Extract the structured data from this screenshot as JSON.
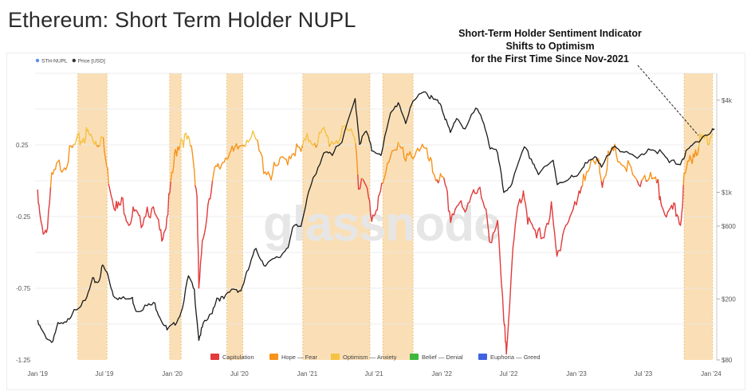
{
  "page": {
    "title": "Ethereum: Short Term Holder NUPL",
    "annotation_lines": [
      "Short-Term Holder Sentiment Indicator",
      "Shifts to Optimism",
      "for the First Time Since Nov-2021"
    ],
    "watermark": "glassnode"
  },
  "chart_data": {
    "type": "line",
    "title": "Ethereum: Short Term Holder NUPL",
    "x_range": [
      "2018-12-25",
      "2024-01-12"
    ],
    "x_ticks": [
      "Jan '19",
      "Jul '19",
      "Jan '20",
      "Jul '20",
      "Jan '21",
      "Jul '21",
      "Jan '22",
      "Jul '22",
      "Jan '23",
      "Jul '23",
      "Jan '24"
    ],
    "y_left": {
      "ticks": [
        "0.25",
        "-0.25",
        "-0.75",
        "-1.25"
      ],
      "range": [
        -1.25,
        0.75
      ]
    },
    "y_right": {
      "scale": "log",
      "ticks": [
        "$4k",
        "$1k",
        "$600",
        "$200",
        "$80"
      ],
      "range": [
        80,
        6000
      ]
    },
    "top_legend": [
      {
        "name": "STH-NUPL",
        "color": "#5b8def"
      },
      {
        "name": "Price [USD]",
        "color": "#333333"
      }
    ],
    "zone_legend": [
      {
        "name": "Capitulation",
        "color": "#e23b3b",
        "min": -10,
        "max": 0
      },
      {
        "name": "Hope — Fear",
        "color": "#f7931a",
        "min": 0,
        "max": 0.25
      },
      {
        "name": "Optimism — Anxiety",
        "color": "#f5c242",
        "min": 0.25,
        "max": 0.5
      },
      {
        "name": "Belief — Denial",
        "color": "#3db83d",
        "min": 0.5,
        "max": 0.75
      },
      {
        "name": "Euphoria — Greed",
        "color": "#3f63e0",
        "min": 0.75,
        "max": 10
      }
    ],
    "highlight_periods": [
      [
        "2019-04-20",
        "2019-07-08"
      ],
      [
        "2019-12-25",
        "2020-01-25"
      ],
      [
        "2020-05-28",
        "2020-07-10"
      ],
      [
        "2020-12-20",
        "2021-06-20"
      ],
      [
        "2021-07-25",
        "2021-10-15"
      ],
      [
        "2023-10-20",
        "2024-01-05"
      ]
    ],
    "series": [
      {
        "name": "STH-NUPL",
        "points": [
          [
            "2019-01-01",
            -0.12
          ],
          [
            "2019-01-10",
            -0.32
          ],
          [
            "2019-01-25",
            -0.35
          ],
          [
            "2019-02-08",
            0.0
          ],
          [
            "2019-02-25",
            0.1
          ],
          [
            "2019-03-15",
            0.12
          ],
          [
            "2019-04-01",
            0.2
          ],
          [
            "2019-04-20",
            0.27
          ],
          [
            "2019-05-05",
            0.3
          ],
          [
            "2019-05-15",
            0.33
          ],
          [
            "2019-05-28",
            0.3
          ],
          [
            "2019-06-10",
            0.28
          ],
          [
            "2019-06-25",
            0.3
          ],
          [
            "2019-07-10",
            0.05
          ],
          [
            "2019-07-22",
            -0.1
          ],
          [
            "2019-08-05",
            -0.2
          ],
          [
            "2019-08-20",
            -0.15
          ],
          [
            "2019-09-05",
            -0.28
          ],
          [
            "2019-09-20",
            -0.22
          ],
          [
            "2019-10-05",
            -0.3
          ],
          [
            "2019-10-25",
            -0.18
          ],
          [
            "2019-11-15",
            -0.25
          ],
          [
            "2019-12-01",
            -0.38
          ],
          [
            "2019-12-15",
            -0.3
          ],
          [
            "2019-12-28",
            -0.05
          ],
          [
            "2020-01-10",
            0.2
          ],
          [
            "2020-01-25",
            0.3
          ],
          [
            "2020-02-10",
            0.28
          ],
          [
            "2020-02-25",
            0.2
          ],
          [
            "2020-03-08",
            -0.1
          ],
          [
            "2020-03-13",
            -0.75
          ],
          [
            "2020-03-25",
            -0.4
          ],
          [
            "2020-04-10",
            -0.1
          ],
          [
            "2020-04-25",
            0.05
          ],
          [
            "2020-05-10",
            0.1
          ],
          [
            "2020-05-28",
            0.2
          ],
          [
            "2020-06-15",
            0.18
          ],
          [
            "2020-07-05",
            0.25
          ],
          [
            "2020-07-25",
            0.32
          ],
          [
            "2020-08-15",
            0.27
          ],
          [
            "2020-09-05",
            0.1
          ],
          [
            "2020-09-25",
            0.05
          ],
          [
            "2020-10-15",
            0.1
          ],
          [
            "2020-11-05",
            0.15
          ],
          [
            "2020-11-25",
            0.22
          ],
          [
            "2020-12-15",
            0.2
          ],
          [
            "2021-01-05",
            0.3
          ],
          [
            "2021-01-25",
            0.28
          ],
          [
            "2021-02-15",
            0.33
          ],
          [
            "2021-03-05",
            0.27
          ],
          [
            "2021-03-25",
            0.3
          ],
          [
            "2021-04-15",
            0.33
          ],
          [
            "2021-05-10",
            0.35
          ],
          [
            "2021-05-20",
            0.0
          ],
          [
            "2021-06-10",
            -0.05
          ],
          [
            "2021-06-25",
            -0.25
          ],
          [
            "2021-07-10",
            -0.15
          ],
          [
            "2021-07-25",
            -0.05
          ],
          [
            "2021-08-15",
            0.2
          ],
          [
            "2021-09-05",
            0.27
          ],
          [
            "2021-09-25",
            0.12
          ],
          [
            "2021-10-15",
            0.2
          ],
          [
            "2021-11-05",
            0.25
          ],
          [
            "2021-11-25",
            0.15
          ],
          [
            "2021-12-10",
            0.05
          ],
          [
            "2021-12-25",
            0.02
          ],
          [
            "2022-01-10",
            -0.05
          ],
          [
            "2022-01-25",
            -0.25
          ],
          [
            "2022-02-15",
            -0.15
          ],
          [
            "2022-03-05",
            -0.25
          ],
          [
            "2022-03-25",
            -0.05
          ],
          [
            "2022-04-10",
            -0.05
          ],
          [
            "2022-05-01",
            -0.25
          ],
          [
            "2022-05-12",
            -0.4
          ],
          [
            "2022-06-01",
            -0.3
          ],
          [
            "2022-06-18",
            -1.0
          ],
          [
            "2022-06-25",
            -1.15
          ],
          [
            "2022-07-10",
            -0.6
          ],
          [
            "2022-07-25",
            -0.2
          ],
          [
            "2022-08-10",
            -0.05
          ],
          [
            "2022-08-25",
            -0.3
          ],
          [
            "2022-09-15",
            -0.4
          ],
          [
            "2022-10-05",
            -0.35
          ],
          [
            "2022-10-25",
            -0.2
          ],
          [
            "2022-11-09",
            -0.55
          ],
          [
            "2022-11-25",
            -0.35
          ],
          [
            "2022-12-15",
            -0.25
          ],
          [
            "2023-01-05",
            -0.15
          ],
          [
            "2023-01-20",
            0.05
          ],
          [
            "2023-02-10",
            0.1
          ],
          [
            "2023-03-01",
            0.12
          ],
          [
            "2023-03-12",
            0.0
          ],
          [
            "2023-03-28",
            0.15
          ],
          [
            "2023-04-15",
            0.2
          ],
          [
            "2023-05-05",
            0.12
          ],
          [
            "2023-05-25",
            0.08
          ],
          [
            "2023-06-15",
            -0.05
          ],
          [
            "2023-07-05",
            0.05
          ],
          [
            "2023-07-25",
            0.0
          ],
          [
            "2023-08-10",
            -0.05
          ],
          [
            "2023-08-20",
            -0.15
          ],
          [
            "2023-09-10",
            -0.25
          ],
          [
            "2023-09-25",
            -0.2
          ],
          [
            "2023-10-10",
            -0.28
          ],
          [
            "2023-10-20",
            0.0
          ],
          [
            "2023-11-05",
            0.15
          ],
          [
            "2023-11-20",
            0.22
          ],
          [
            "2023-12-05",
            0.28
          ],
          [
            "2023-12-20",
            0.3
          ],
          [
            "2024-01-05",
            0.33
          ]
        ]
      },
      {
        "name": "Price [USD]",
        "points": [
          [
            "2019-01-01",
            140
          ],
          [
            "2019-01-15",
            120
          ],
          [
            "2019-02-08",
            105
          ],
          [
            "2019-02-25",
            135
          ],
          [
            "2019-03-20",
            138
          ],
          [
            "2019-04-10",
            175
          ],
          [
            "2019-05-10",
            190
          ],
          [
            "2019-05-30",
            265
          ],
          [
            "2019-06-15",
            260
          ],
          [
            "2019-06-26",
            330
          ],
          [
            "2019-07-10",
            290
          ],
          [
            "2019-07-25",
            215
          ],
          [
            "2019-08-15",
            200
          ],
          [
            "2019-09-15",
            200
          ],
          [
            "2019-09-25",
            170
          ],
          [
            "2019-10-25",
            180
          ],
          [
            "2019-11-15",
            185
          ],
          [
            "2019-12-01",
            150
          ],
          [
            "2019-12-18",
            125
          ],
          [
            "2020-01-05",
            135
          ],
          [
            "2020-01-25",
            165
          ],
          [
            "2020-02-14",
            280
          ],
          [
            "2020-03-01",
            225
          ],
          [
            "2020-03-13",
            110
          ],
          [
            "2020-03-25",
            135
          ],
          [
            "2020-04-15",
            158
          ],
          [
            "2020-05-01",
            205
          ],
          [
            "2020-05-20",
            200
          ],
          [
            "2020-06-15",
            235
          ],
          [
            "2020-07-05",
            228
          ],
          [
            "2020-07-25",
            310
          ],
          [
            "2020-08-15",
            430
          ],
          [
            "2020-09-05",
            340
          ],
          [
            "2020-09-25",
            350
          ],
          [
            "2020-10-20",
            380
          ],
          [
            "2020-11-10",
            450
          ],
          [
            "2020-11-25",
            590
          ],
          [
            "2020-12-15",
            600
          ],
          [
            "2021-01-05",
            1050
          ],
          [
            "2021-01-25",
            1300
          ],
          [
            "2021-02-20",
            1900
          ],
          [
            "2021-03-10",
            1800
          ],
          [
            "2021-04-05",
            2100
          ],
          [
            "2021-05-11",
            4100
          ],
          [
            "2021-05-23",
            2100
          ],
          [
            "2021-06-10",
            2500
          ],
          [
            "2021-06-25",
            1900
          ],
          [
            "2021-07-20",
            1800
          ],
          [
            "2021-08-15",
            3200
          ],
          [
            "2021-09-05",
            3900
          ],
          [
            "2021-09-25",
            2900
          ],
          [
            "2021-10-15",
            3800
          ],
          [
            "2021-11-10",
            4700
          ],
          [
            "2021-11-28",
            4300
          ],
          [
            "2021-12-10",
            4000
          ],
          [
            "2021-12-27",
            3900
          ],
          [
            "2022-01-10",
            3100
          ],
          [
            "2022-01-24",
            2400
          ],
          [
            "2022-02-10",
            3100
          ],
          [
            "2022-03-05",
            2600
          ],
          [
            "2022-04-03",
            3500
          ],
          [
            "2022-04-25",
            2900
          ],
          [
            "2022-05-12",
            1950
          ],
          [
            "2022-06-01",
            1800
          ],
          [
            "2022-06-18",
            1000
          ],
          [
            "2022-07-10",
            1150
          ],
          [
            "2022-08-13",
            1950
          ],
          [
            "2022-09-05",
            1580
          ],
          [
            "2022-09-20",
            1320
          ],
          [
            "2022-10-30",
            1580
          ],
          [
            "2022-11-10",
            1150
          ],
          [
            "2022-12-15",
            1250
          ],
          [
            "2023-01-05",
            1250
          ],
          [
            "2023-01-25",
            1600
          ],
          [
            "2023-02-20",
            1680
          ],
          [
            "2023-03-10",
            1430
          ],
          [
            "2023-04-15",
            2100
          ],
          [
            "2023-05-10",
            1800
          ],
          [
            "2023-06-15",
            1650
          ],
          [
            "2023-07-15",
            1950
          ],
          [
            "2023-08-15",
            1840
          ],
          [
            "2023-09-10",
            1560
          ],
          [
            "2023-10-10",
            1570
          ],
          [
            "2023-10-25",
            1800
          ],
          [
            "2023-11-15",
            2050
          ],
          [
            "2023-12-10",
            2350
          ],
          [
            "2023-12-28",
            2400
          ],
          [
            "2024-01-10",
            2600
          ]
        ]
      }
    ]
  }
}
